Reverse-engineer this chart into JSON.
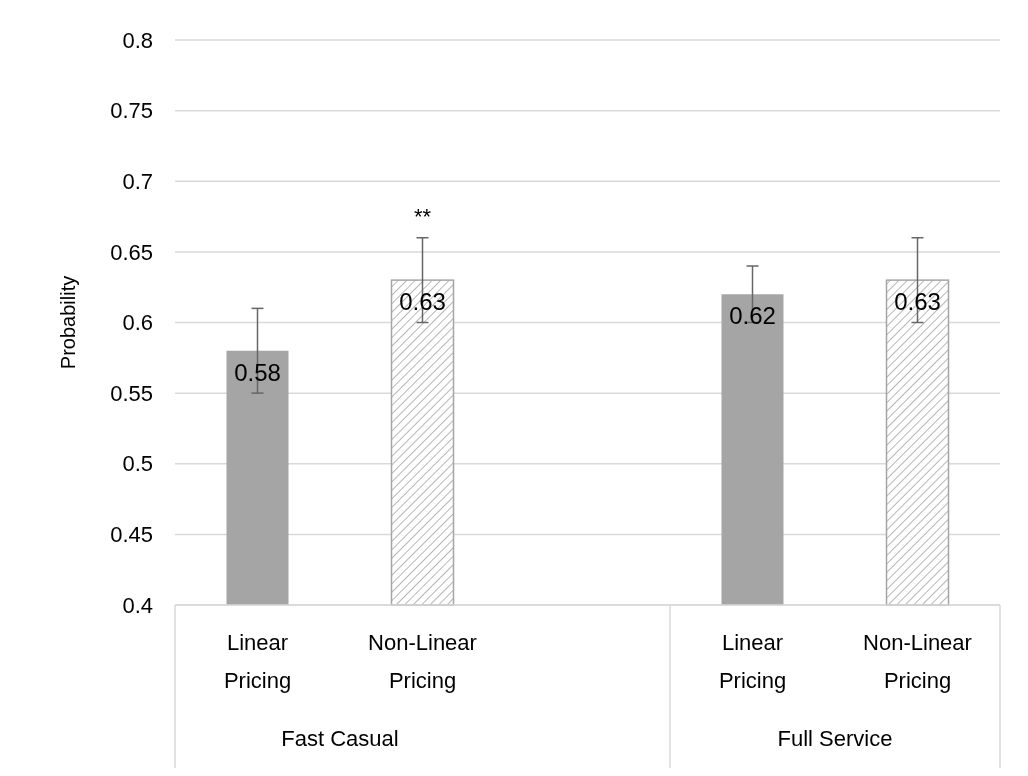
{
  "chart_data": {
    "type": "bar",
    "ylabel": "Probability",
    "categories": [
      "Linear Pricing",
      "Non-Linear Pricing",
      null,
      "Linear Pricing",
      "Non-Linear Pricing"
    ],
    "series": [
      {
        "color": "#a5a5a5",
        "values": [
          0.58,
          null,
          null,
          0.62,
          null
        ],
        "errors": [
          0.03,
          null,
          null,
          0.02,
          null
        ]
      },
      {
        "color": "#a5a5a5",
        "values": [
          null,
          0.63,
          null,
          null,
          0.63
        ],
        "errors": [
          null,
          0.03,
          null,
          null,
          0.03
        ]
      }
    ],
    "ylim": [
      0.4,
      0.8
    ],
    "yticks": [
      0.4,
      0.45,
      0.5,
      0.55,
      0.6,
      0.65,
      0.7,
      0.75,
      0.8
    ],
    "grid": "y",
    "data_labels": true,
    "annotations": [
      "**",
      "Fast Casual",
      "Full Service"
    ]
  }
}
